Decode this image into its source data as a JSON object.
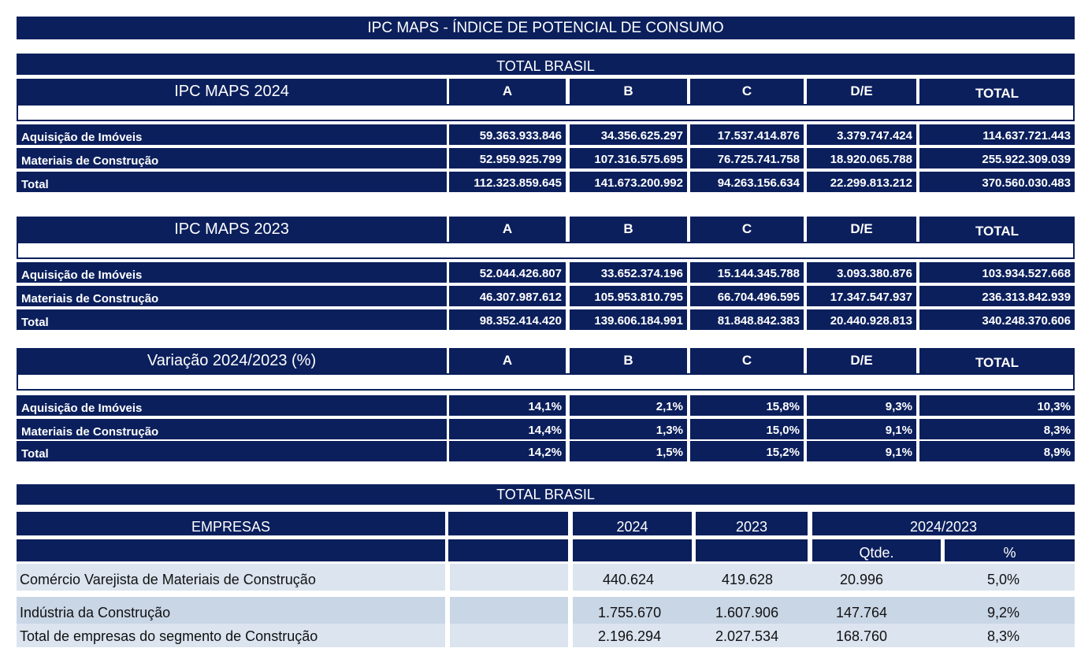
{
  "title": "IPC MAPS - ÍNDICE DE POTENCIAL DE CONSUMO",
  "total_brasil_1": "TOTAL BRASIL",
  "columns": [
    "A",
    "B",
    "C",
    "D/E",
    "TOTAL"
  ],
  "tables": [
    {
      "heading": "IPC MAPS 2024",
      "rows": [
        {
          "label": "Aquisição de Imóveis",
          "values": [
            "59.363.933.846",
            "34.356.625.297",
            "17.537.414.876",
            "3.379.747.424",
            "114.637.721.443"
          ]
        },
        {
          "label": "Materiais de Construção",
          "values": [
            "52.959.925.799",
            "107.316.575.695",
            "76.725.741.758",
            "18.920.065.788",
            "255.922.309.039"
          ]
        },
        {
          "label": "Total",
          "values": [
            "112.323.859.645",
            "141.673.200.992",
            "94.263.156.634",
            "22.299.813.212",
            "370.560.030.483"
          ]
        }
      ]
    },
    {
      "heading": "IPC MAPS 2023",
      "rows": [
        {
          "label": "Aquisição de Imóveis",
          "values": [
            "52.044.426.807",
            "33.652.374.196",
            "15.144.345.788",
            "3.093.380.876",
            "103.934.527.668"
          ]
        },
        {
          "label": "Materiais de Construção",
          "values": [
            "46.307.987.612",
            "105.953.810.795",
            "66.704.496.595",
            "17.347.547.937",
            "236.313.842.939"
          ]
        },
        {
          "label": "Total",
          "values": [
            "98.352.414.420",
            "139.606.184.991",
            "81.848.842.383",
            "20.440.928.813",
            "340.248.370.606"
          ]
        }
      ]
    },
    {
      "heading": "Variação 2024/2023 (%)",
      "rows": [
        {
          "label": "Aquisição de Imóveis",
          "values": [
            "14,1%",
            "2,1%",
            "15,8%",
            "9,3%",
            "10,3%"
          ]
        },
        {
          "label": "Materiais de Construção",
          "values": [
            "14,4%",
            "1,3%",
            "15,0%",
            "9,1%",
            "8,3%"
          ]
        },
        {
          "label": "Total",
          "values": [
            "14,2%",
            "1,5%",
            "15,2%",
            "9,1%",
            "8,9%"
          ]
        }
      ]
    }
  ],
  "empresas": {
    "total_brasil": "TOTAL BRASIL",
    "header": {
      "label": "EMPRESAS",
      "y2024": "2024",
      "y2023": "2023",
      "var": "2024/2023",
      "qtde": "Qtde.",
      "pct": "%"
    },
    "rows": [
      {
        "label": "Comércio Varejista de Materiais de Construção",
        "v2024": "440.624",
        "v2023": "419.628",
        "qtde": "20.996",
        "pct": "5,0%"
      },
      {
        "label": "Indústria da Construção",
        "v2024": "1.755.670",
        "v2023": "1.607.906",
        "qtde": "147.764",
        "pct": "9,2%"
      },
      {
        "label": "Total de empresas do segmento de Construção",
        "v2024": "2.196.294",
        "v2023": "2.027.534",
        "qtde": "168.760",
        "pct": "8,3%"
      }
    ]
  },
  "colors": {
    "navy": "#0b1f5c",
    "row_light": "#dbe4ef",
    "row_mid": "#c9d6e6"
  }
}
